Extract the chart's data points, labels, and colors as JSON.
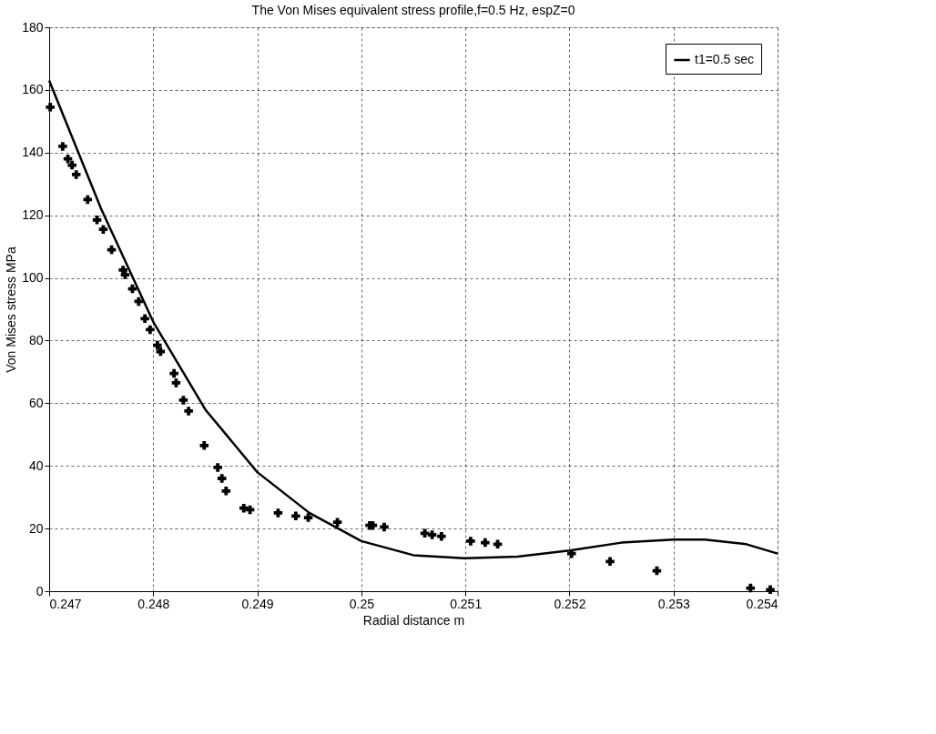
{
  "chart_data": {
    "type": "line",
    "title": "The Von Mises equivalent stress profile,f=0.5 Hz, espZ=0",
    "xlabel": "Radial distance m",
    "ylabel": "Von Mises stress MPa",
    "xlim": [
      0.247,
      0.254
    ],
    "xticks": [
      0.247,
      0.248,
      0.249,
      0.25,
      0.251,
      0.252,
      0.253,
      0.254
    ],
    "ylim": [
      0,
      180
    ],
    "yticks": [
      0,
      20,
      40,
      60,
      80,
      100,
      120,
      140,
      160,
      180
    ],
    "grid": true,
    "legend": "top right",
    "series": [
      {
        "name": "t1=0.5 sec",
        "color": "#000000",
        "marker": "none",
        "line_style": "solid",
        "x": [
          0.247,
          0.2475,
          0.248,
          0.2485,
          0.249,
          0.2495,
          0.25,
          0.2505,
          0.251,
          0.2515,
          0.252,
          0.2525,
          0.253,
          0.2533,
          0.2537,
          0.254
        ],
        "values": [
          163,
          122,
          86,
          58,
          38,
          25,
          16,
          11.5,
          10.5,
          11,
          13,
          15.5,
          16.5,
          16.5,
          15,
          12
        ]
      },
      {
        "type": "scatter",
        "color": "#000000",
        "marker": "cross",
        "x": [
          0.24701,
          0.24713,
          0.24718,
          0.24722,
          0.24726,
          0.24737,
          0.24746,
          0.24752,
          0.2476,
          0.24771,
          0.24773,
          0.2478,
          0.24786,
          0.24792,
          0.24797,
          0.24804,
          0.24807,
          0.2482,
          0.24822,
          0.24829,
          0.24834,
          0.24849,
          0.24862,
          0.24866,
          0.2487,
          0.24887,
          0.24893,
          0.2492,
          0.24937,
          0.24949,
          0.24977,
          0.25008,
          0.25011,
          0.25022,
          0.25061,
          0.25068,
          0.25077,
          0.25105,
          0.25119,
          0.25131,
          0.25202,
          0.25239,
          0.25284,
          0.25374,
          0.25393
        ],
        "values": [
          154.5,
          142,
          138,
          136,
          133,
          125,
          118.5,
          115.5,
          109,
          102.5,
          101,
          96.5,
          92.5,
          87,
          83.5,
          78.5,
          76.5,
          69.5,
          66.5,
          61,
          57.5,
          46.5,
          39.5,
          36,
          32,
          26.5,
          26,
          25,
          24,
          23.5,
          22,
          21,
          21,
          20.5,
          18.5,
          18,
          17.5,
          16,
          15.5,
          15,
          12,
          9.5,
          6.5,
          1,
          0.5
        ]
      }
    ]
  }
}
